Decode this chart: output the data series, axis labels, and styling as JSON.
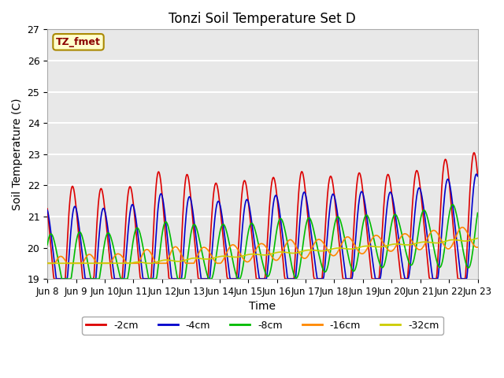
{
  "title": "Tonzi Soil Temperature Set D",
  "xlabel": "Time",
  "ylabel": "Soil Temperature (C)",
  "ylim": [
    19.0,
    27.0
  ],
  "yticks": [
    19.0,
    20.0,
    21.0,
    22.0,
    23.0,
    24.0,
    25.0,
    26.0,
    27.0
  ],
  "xtick_labels": [
    "Jun 8",
    "Jun 9",
    "Jun 10",
    "Jun 11",
    "Jun 12",
    "Jun 13",
    "Jun 14",
    "Jun 15",
    "Jun 16",
    "Jun 17",
    "Jun 18",
    "Jun 19",
    "Jun 20",
    "Jun 21",
    "Jun 22",
    "Jun 23"
  ],
  "series": {
    "-2cm": {
      "color": "#dd0000",
      "linewidth": 1.2
    },
    "-4cm": {
      "color": "#0000cc",
      "linewidth": 1.2
    },
    "-8cm": {
      "color": "#00bb00",
      "linewidth": 1.2
    },
    "-16cm": {
      "color": "#ff8800",
      "linewidth": 1.2
    },
    "-32cm": {
      "color": "#cccc00",
      "linewidth": 1.2
    }
  },
  "legend_label": "TZ_fmet",
  "legend_box_color": "#ffffcc",
  "legend_box_border": "#aa8800",
  "bg_color": "#e8e8e8",
  "grid_color": "#ffffff"
}
